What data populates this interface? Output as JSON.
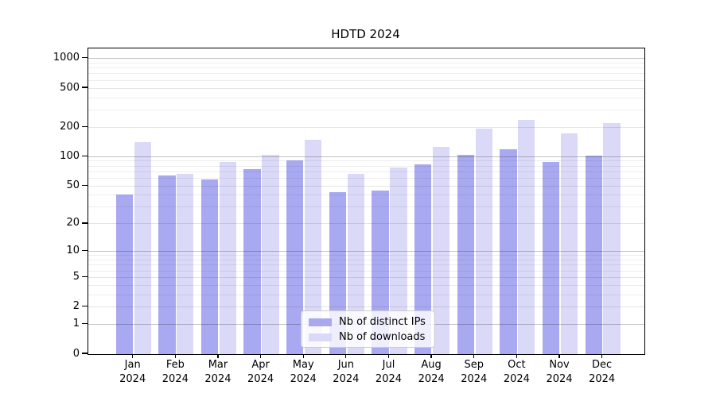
{
  "title": "HDTD 2024",
  "chart_data": {
    "type": "bar",
    "title": "HDTD 2024",
    "categories": [
      "Jan",
      "Feb",
      "Mar",
      "Apr",
      "May",
      "Jun",
      "Jul",
      "Aug",
      "Sep",
      "Oct",
      "Nov",
      "Dec"
    ],
    "x_year_suffix": "2024",
    "series": [
      {
        "name": "Nb of distinct IPs",
        "color": "#a9a9f2",
        "values": [
          41,
          64,
          58,
          74,
          92,
          43,
          45,
          83,
          105,
          120,
          88,
          103
        ]
      },
      {
        "name": "Nb of downloads",
        "color": "#dadaf8",
        "values": [
          140,
          67,
          88,
          104,
          150,
          67,
          78,
          125,
          195,
          237,
          172,
          221
        ]
      }
    ],
    "xlabel": "",
    "ylabel": "",
    "yscale": "log10(value+1)",
    "ylim": [
      0,
      1268
    ],
    "yticks": [
      0,
      1,
      2,
      5,
      10,
      20,
      50,
      100,
      200,
      500,
      1000
    ],
    "minor_gridlines": [
      3,
      4,
      6,
      7,
      8,
      9,
      30,
      40,
      60,
      70,
      80,
      90,
      300,
      400,
      600,
      700,
      800,
      900
    ],
    "grid": true,
    "legend_position": "lower center"
  }
}
